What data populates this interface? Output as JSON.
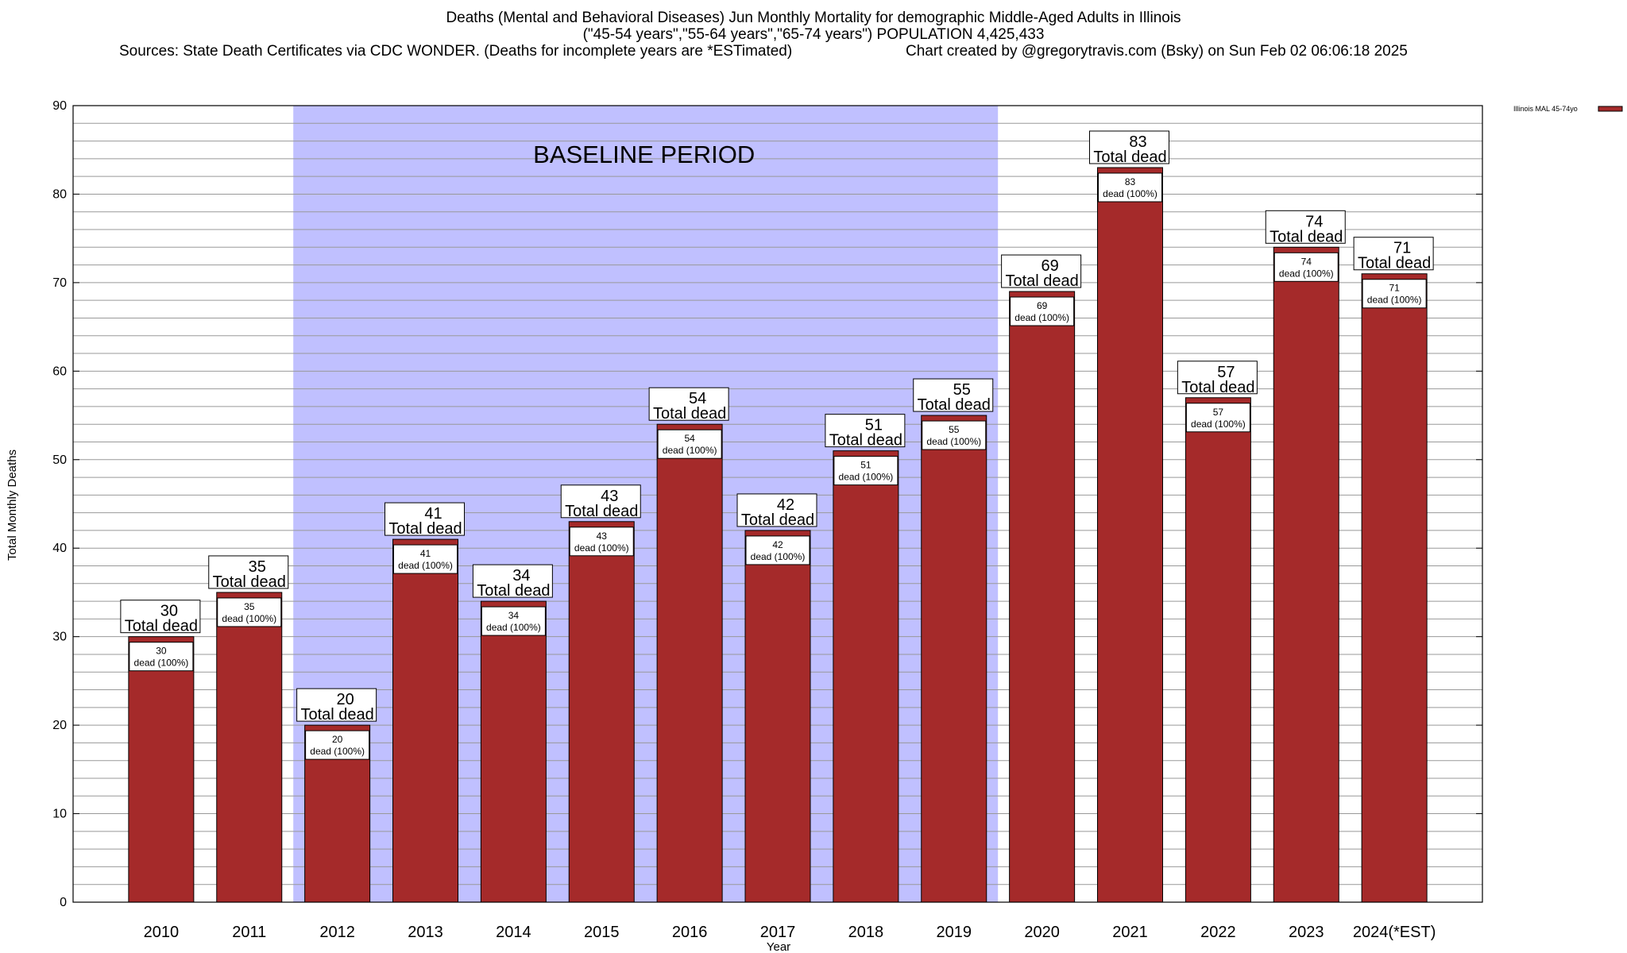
{
  "title": {
    "line1": "Deaths (Mental and Behavioral Diseases) Jun Monthly Mortality for demographic Middle-Aged Adults in Illinois",
    "line2": "(\"45-54 years\",\"55-64 years\",\"65-74 years\") POPULATION 4,425,433",
    "sources": "Sources: State Death Certificates via CDC WONDER. (Deaths for incomplete years are *ESTimated)",
    "credit": "Chart created by @gregorytravis.com (Bsky) on Sun Feb 02 06:06:18 2025"
  },
  "chart_data": {
    "type": "bar",
    "categories": [
      "2010",
      "2011",
      "2012",
      "2013",
      "2014",
      "2015",
      "2016",
      "2017",
      "2018",
      "2019",
      "2020",
      "2021",
      "2022",
      "2023",
      "2024(*EST)"
    ],
    "series": [
      {
        "name": "Illinois MAL 45-74yo",
        "values": [
          30,
          35,
          20,
          41,
          34,
          43,
          54,
          42,
          51,
          55,
          69,
          83,
          57,
          74,
          71
        ]
      }
    ],
    "xlabel": "Year",
    "ylabel": "Total Monthly Deaths",
    "ylim": [
      0,
      90
    ],
    "yticks": [
      0,
      10,
      20,
      30,
      40,
      50,
      60,
      70,
      80,
      90
    ],
    "grid": true,
    "legend_position": "top-right",
    "bar_color": "#a52a2a",
    "baseline_band": {
      "label": "BASELINE PERIOD",
      "from": "2012",
      "to": "2019",
      "color": "#c0c0ff"
    },
    "top_label_text": "Total dead",
    "inner_label_text": "dead (100%)"
  }
}
